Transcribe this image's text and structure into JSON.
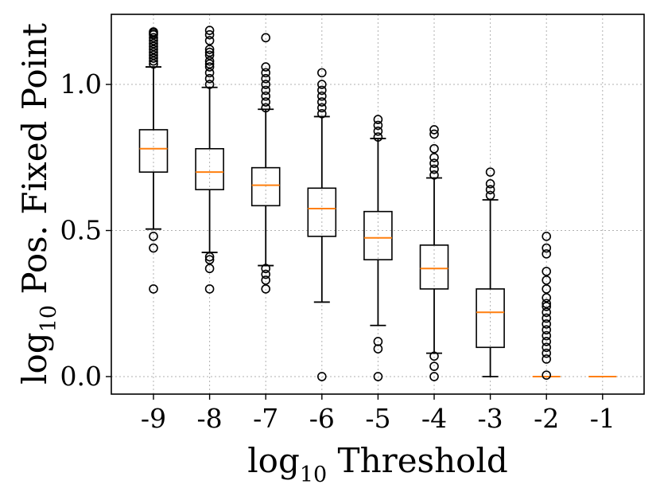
{
  "chart_data": {
    "type": "box",
    "title": "",
    "xlabel_main": "log",
    "xlabel_sub": "10",
    "xlabel_rest": " Threshold",
    "ylabel_main": "log",
    "ylabel_sub": "10",
    "ylabel_rest": " Pos. Fixed Point",
    "ylim": [
      -0.06,
      1.24
    ],
    "yticks": [
      0.0,
      0.5,
      1.0
    ],
    "ytick_labels": [
      "0.0",
      "0.5",
      "1.0"
    ],
    "grid": true,
    "categories": [
      "-9",
      "-8",
      "-7",
      "-6",
      "-5",
      "-4",
      "-3",
      "-2",
      "-1"
    ],
    "boxes": [
      {
        "category": "-9",
        "whisker_low": 0.505,
        "q1": 0.7,
        "median": 0.78,
        "q3": 0.845,
        "whisker_high": 1.06,
        "outliers": [
          0.3,
          0.44,
          0.48,
          1.07,
          1.08,
          1.09,
          1.1,
          1.11,
          1.12,
          1.13,
          1.14,
          1.15,
          1.16,
          1.17,
          1.175,
          1.18
        ]
      },
      {
        "category": "-8",
        "whisker_low": 0.425,
        "q1": 0.64,
        "median": 0.7,
        "q3": 0.78,
        "whisker_high": 0.99,
        "outliers": [
          0.3,
          0.37,
          0.4,
          0.41,
          1.0,
          1.02,
          1.04,
          1.06,
          1.07,
          1.08,
          1.1,
          1.11,
          1.12,
          1.15,
          1.17,
          1.185
        ]
      },
      {
        "category": "-7",
        "whisker_low": 0.38,
        "q1": 0.585,
        "median": 0.655,
        "q3": 0.715,
        "whisker_high": 0.915,
        "outliers": [
          0.3,
          0.33,
          0.35,
          0.37,
          0.92,
          0.94,
          0.96,
          0.98,
          1.0,
          1.02,
          1.04,
          1.06,
          1.16
        ]
      },
      {
        "category": "-6",
        "whisker_low": 0.255,
        "q1": 0.48,
        "median": 0.575,
        "q3": 0.645,
        "whisker_high": 0.89,
        "outliers": [
          0.0,
          0.9,
          0.92,
          0.94,
          0.96,
          0.98,
          1.0,
          1.04
        ]
      },
      {
        "category": "-5",
        "whisker_low": 0.175,
        "q1": 0.4,
        "median": 0.475,
        "q3": 0.565,
        "whisker_high": 0.815,
        "outliers": [
          0.0,
          0.095,
          0.12,
          0.82,
          0.84,
          0.86,
          0.88
        ]
      },
      {
        "category": "-4",
        "whisker_low": 0.08,
        "q1": 0.3,
        "median": 0.37,
        "q3": 0.45,
        "whisker_high": 0.68,
        "outliers": [
          0.0,
          0.035,
          0.07,
          0.69,
          0.71,
          0.73,
          0.75,
          0.78,
          0.83,
          0.845
        ]
      },
      {
        "category": "-3",
        "whisker_low": 0.0,
        "q1": 0.1,
        "median": 0.22,
        "q3": 0.3,
        "whisker_high": 0.605,
        "outliers": [
          0.62,
          0.64,
          0.66,
          0.7
        ]
      },
      {
        "category": "-2",
        "whisker_low": 0.0,
        "q1": 0.0,
        "median": 0.0,
        "q3": 0.0,
        "whisker_high": 0.0,
        "outliers": [
          0.005,
          0.06,
          0.08,
          0.1,
          0.12,
          0.14,
          0.16,
          0.18,
          0.2,
          0.22,
          0.24,
          0.25,
          0.27,
          0.3,
          0.33,
          0.36,
          0.42,
          0.44,
          0.48
        ]
      },
      {
        "category": "-1",
        "whisker_low": 0.0,
        "q1": 0.0,
        "median": 0.0,
        "q3": 0.0,
        "whisker_high": 0.0,
        "outliers": []
      }
    ],
    "colors": {
      "box": "#000000",
      "median": "#ff7f0e",
      "grid": "#b0b0b0",
      "background": "#ffffff"
    }
  }
}
